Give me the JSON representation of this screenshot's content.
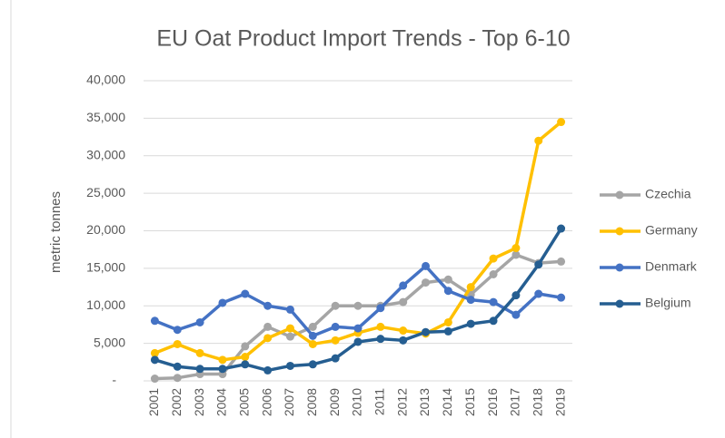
{
  "chart_data": {
    "type": "line",
    "title": "EU Oat Product Import Trends - Top  6-10",
    "y_label": "metric tonnes",
    "categories": [
      "2001",
      "2002",
      "2003",
      "2004",
      "2005",
      "2006",
      "2007",
      "2008",
      "2009",
      "2010",
      "2011",
      "2012",
      "2013",
      "2014",
      "2015",
      "2016",
      "2017",
      "2018",
      "2019"
    ],
    "series": [
      {
        "name": "Czechia",
        "color": "#a5a5a5",
        "values": [
          300,
          400,
          900,
          900,
          4600,
          7200,
          5900,
          7200,
          10000,
          10000,
          10000,
          10500,
          13100,
          13500,
          11500,
          14200,
          16800,
          15700,
          15900
        ]
      },
      {
        "name": "Germany",
        "color": "#ffc000",
        "values": [
          3700,
          4900,
          3700,
          2800,
          3200,
          5700,
          7000,
          4900,
          5400,
          6400,
          7200,
          6700,
          6300,
          7800,
          12500,
          16300,
          17700,
          32000,
          34500
        ]
      },
      {
        "name": "Denmark",
        "color": "#4472c4",
        "values": [
          8000,
          6800,
          7800,
          10400,
          11600,
          10000,
          9500,
          6000,
          7200,
          7000,
          9700,
          12700,
          15300,
          12000,
          10800,
          10500,
          8800,
          11600,
          11100
        ]
      },
      {
        "name": "Belgium",
        "color": "#255e91",
        "values": [
          2800,
          1900,
          1600,
          1600,
          2200,
          1400,
          2000,
          2200,
          3000,
          5200,
          5600,
          5400,
          6500,
          6600,
          7600,
          8000,
          11400,
          15500,
          20300
        ]
      }
    ],
    "ylim": [
      0,
      40000
    ],
    "yticks": [
      {
        "value": 0,
        "label": "-"
      },
      {
        "value": 5000,
        "label": "5,000"
      },
      {
        "value": 10000,
        "label": "10,000"
      },
      {
        "value": 15000,
        "label": "15,000"
      },
      {
        "value": 20000,
        "label": "20,000"
      },
      {
        "value": 25000,
        "label": "25,000"
      },
      {
        "value": 30000,
        "label": "30,000"
      },
      {
        "value": 35000,
        "label": "35,000"
      },
      {
        "value": 40000,
        "label": "40,000"
      }
    ],
    "grid": true,
    "legend": "right"
  }
}
